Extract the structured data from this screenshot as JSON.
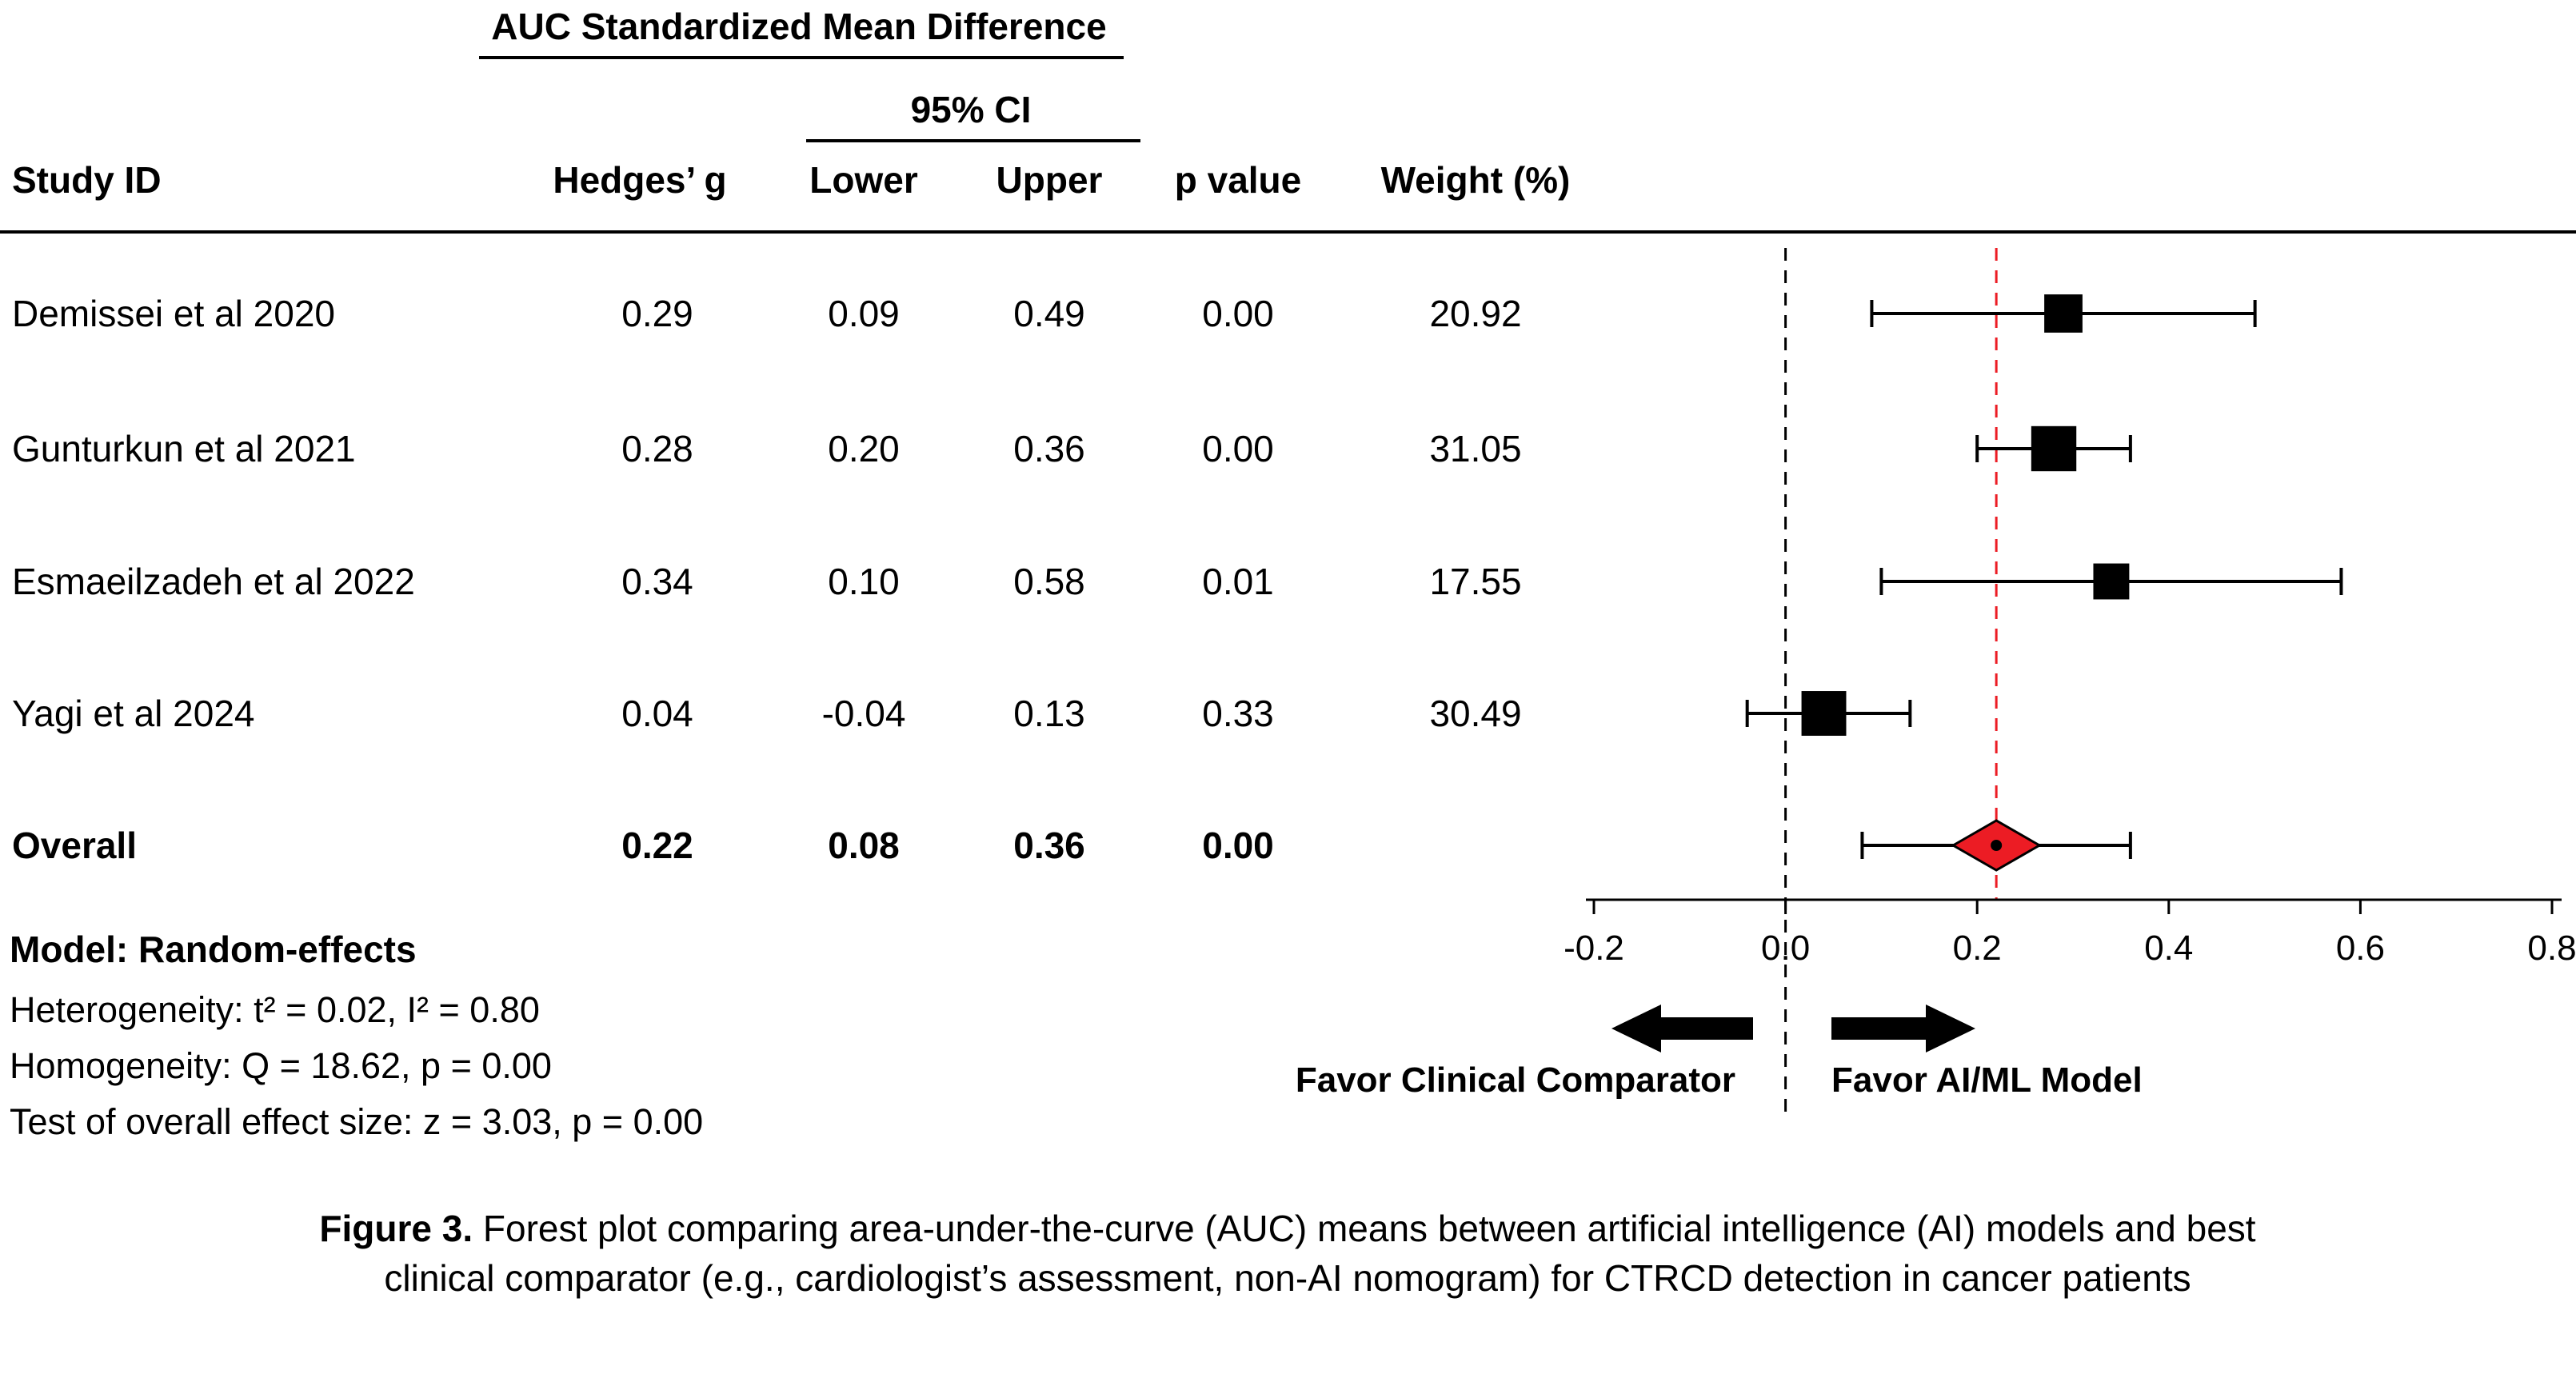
{
  "colors": {
    "red": "#ec1c24",
    "black": "#000000"
  },
  "title_block": {
    "group_title": "AUC Standardized Mean Difference",
    "ci_header": "95% CI"
  },
  "columns": {
    "study_id": "Study ID",
    "hedges_g": "Hedges’ g",
    "lower": "Lower",
    "upper": "Upper",
    "p_value": "p value",
    "weight": "Weight (%)"
  },
  "chart_data": {
    "type": "forest",
    "x_axis": {
      "min": -0.2,
      "max": 0.8,
      "tick_values": [
        -0.2,
        0.0,
        0.2,
        0.4,
        0.6,
        0.8
      ],
      "ticks": [
        "-0.2",
        "0.0",
        "0.2",
        "0.4",
        "0.6",
        "0.8"
      ]
    },
    "reference_line": 0.0,
    "overall_line": 0.22,
    "studies": [
      {
        "name": "Demissei et al 2020",
        "hedges_g": "0.29",
        "lower": "0.09",
        "upper": "0.49",
        "p_value": "0.00",
        "weight": "20.92"
      },
      {
        "name": "Gunturkun et al 2021",
        "hedges_g": "0.28",
        "lower": "0.20",
        "upper": "0.36",
        "p_value": "0.00",
        "weight": "31.05"
      },
      {
        "name": "Esmaeilzadeh et al 2022",
        "hedges_g": "0.34",
        "lower": "0.10",
        "upper": "0.58",
        "p_value": "0.01",
        "weight": "17.55"
      },
      {
        "name": "Yagi et al 2024",
        "hedges_g": "0.04",
        "lower": "-0.04",
        "upper": "0.13",
        "p_value": "0.33",
        "weight": "30.49"
      }
    ],
    "overall": {
      "name": "Overall",
      "hedges_g": "0.22",
      "lower": "0.08",
      "upper": "0.36",
      "p_value": "0.00",
      "weight": ""
    },
    "favor_left": "Favor Clinical Comparator",
    "favor_right": "Favor AI/ML Model"
  },
  "footer": {
    "model": "Model: Random-effects",
    "heterogeneity": "Heterogeneity: t² = 0.02, I² = 0.80",
    "homogeneity": "Homogeneity: Q = 18.62, p = 0.00",
    "overall_effect": "Test of overall effect size: z = 3.03, p = 0.00"
  },
  "caption": {
    "label": "Figure 3.",
    "text": "Forest plot comparing area-under-the-curve (AUC) means between artificial intelligence (AI) models and best clinical comparator (e.g., cardiologist’s assessment, non-AI nomogram) for CTRCD detection in cancer patients"
  }
}
